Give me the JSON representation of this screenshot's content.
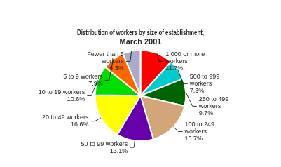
{
  "chart_data": {
    "type": "pie",
    "title": "Distribution of workers by size of establishment,\nMarch 2001",
    "categories": [
      "1,000 or more\nworkers",
      "500 to 999\nworkers",
      "250 to 499\nworkers",
      "100 to 249\nworkers",
      "50 to 99 workers",
      "20 to 49 workers",
      "10 to 19 workers",
      "5 to 9 workers",
      "Fewer than 5\nworkers"
    ],
    "values": [
      11.7,
      7.3,
      9.7,
      16.7,
      13.1,
      16.6,
      10.6,
      7.9,
      6.3
    ],
    "value_labels": [
      "11.7%",
      "7.3%",
      "9.7%",
      "16.7%",
      "13.1%",
      "16.6%",
      "10.6%",
      "7.9%",
      "6.3%"
    ],
    "colors": [
      "#FF0000",
      "#00CCCC",
      "#006400",
      "#D2A679",
      "#6600AA",
      "#FFFF00",
      "#00DD00",
      "#FF6600",
      "#AAAACC"
    ],
    "data_labels": true
  }
}
